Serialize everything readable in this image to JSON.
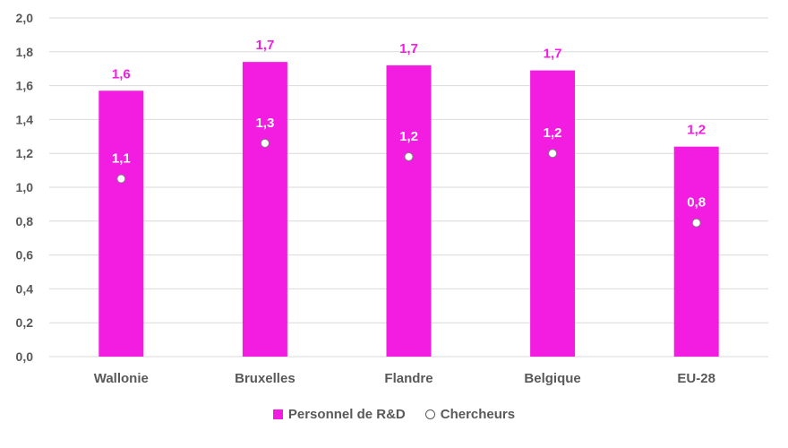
{
  "colors": {
    "bar": "#f21de1",
    "point": "#ffffff",
    "axis_text": "#595959",
    "grid": "#d9d9d9"
  },
  "chart_data": {
    "type": "bar",
    "categories": [
      "Wallonie",
      "Bruxelles",
      "Flandre",
      "Belgique",
      "EU-28"
    ],
    "series": [
      {
        "name": "Personnel de R&D",
        "kind": "bar",
        "values": [
          1.57,
          1.74,
          1.72,
          1.69,
          1.24
        ],
        "labels": [
          "1,6",
          "1,7",
          "1,7",
          "1,7",
          "1,2"
        ]
      },
      {
        "name": "Chercheurs",
        "kind": "point",
        "values": [
          1.05,
          1.26,
          1.18,
          1.2,
          0.79
        ],
        "labels": [
          "1,1",
          "1,3",
          "1,2",
          "1,2",
          "0,8"
        ]
      }
    ],
    "ylim": [
      0,
      2.0
    ],
    "ytick_labels": [
      "0,0",
      "0,2",
      "0,4",
      "0,6",
      "0,8",
      "1,0",
      "1,2",
      "1,4",
      "1,6",
      "1,8",
      "2,0"
    ],
    "grid": true,
    "legend": "bottom"
  }
}
